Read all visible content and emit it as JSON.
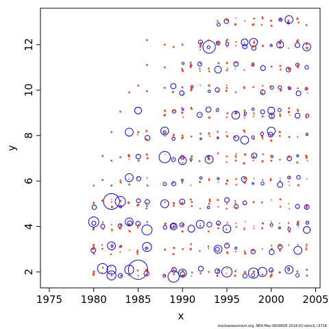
{
  "chart_data": {
    "type": "scatter",
    "title": "",
    "xlabel": "x",
    "ylabel": "y",
    "xlim": [
      1974,
      2005.5
    ],
    "ylim": [
      1.3,
      13.6
    ],
    "x_ticks": [
      1975,
      1980,
      1985,
      1990,
      1995,
      2000,
      2005
    ],
    "y_ticks": [
      2,
      4,
      6,
      8,
      10,
      12
    ],
    "grid": false,
    "legend": "none",
    "series": [
      {
        "color": "#0000ff",
        "marker": "open-circle",
        "points": [
          [
            1980,
            4.2,
            0.45
          ],
          [
            1981,
            2.15,
            0.45
          ],
          [
            1982,
            2.1,
            0.4
          ],
          [
            1982,
            1.85,
            0.4
          ],
          [
            1982,
            3.15,
            0.35
          ],
          [
            1982,
            5.1,
            0.7
          ],
          [
            1983,
            5.1,
            0.45
          ],
          [
            1984,
            2.1,
            0.4
          ],
          [
            1984,
            4.2,
            0.35
          ],
          [
            1984,
            6.15,
            0.35
          ],
          [
            1984,
            8.15,
            0.35
          ],
          [
            1985,
            2.1,
            0.85
          ],
          [
            1985,
            9.1,
            0.3
          ],
          [
            1986,
            3.85,
            0.45
          ],
          [
            1986,
            3.1,
            0.4
          ],
          [
            1988,
            7.05,
            0.5
          ],
          [
            1988,
            8.2,
            0.35
          ],
          [
            1988,
            5.0,
            0.35
          ],
          [
            1989,
            1.8,
            0.5
          ],
          [
            1989,
            4.0,
            0.3
          ],
          [
            1990,
            1.95,
            0.35
          ],
          [
            1990,
            6.9,
            0.35
          ],
          [
            1991,
            3.9,
            0.3
          ],
          [
            1992,
            4.1,
            0.35
          ],
          [
            1993,
            11.9,
            0.55
          ],
          [
            1993,
            6.95,
            0.35
          ],
          [
            1994,
            10.9,
            0.3
          ],
          [
            1994,
            3.0,
            0.35
          ],
          [
            1995,
            2.0,
            0.45
          ],
          [
            1995,
            3.9,
            0.35
          ],
          [
            1996,
            8.9,
            0.35
          ],
          [
            1997,
            7.8,
            0.35
          ],
          [
            1997,
            12.1,
            0.3
          ],
          [
            1998,
            12.1,
            0.35
          ],
          [
            1998,
            1.95,
            0.45
          ],
          [
            1999,
            2.0,
            0.4
          ],
          [
            2000,
            8.2,
            0.35
          ],
          [
            2000,
            9.1,
            0.3
          ],
          [
            2001,
            12.0,
            0.3
          ],
          [
            2002,
            13.1,
            0.35
          ],
          [
            2002,
            2.1,
            0.35
          ],
          [
            2003,
            2.95,
            0.35
          ],
          [
            2004,
            11.9,
            0.35
          ],
          [
            2004,
            3.85,
            0.3
          ]
        ]
      },
      {
        "color": "#ee4422",
        "marker": "small-dot",
        "points": [
          [
            1980,
            5.8
          ],
          [
            1980,
            5.05
          ],
          [
            1980,
            3.1
          ],
          [
            1980,
            2.0
          ],
          [
            1981,
            7.1
          ],
          [
            1981,
            6.05
          ],
          [
            1981,
            4.1
          ],
          [
            1982,
            8.15
          ],
          [
            1982,
            6.9
          ],
          [
            1983,
            9.05
          ],
          [
            1983,
            7.05
          ],
          [
            1984,
            9.9
          ],
          [
            1984,
            5.85
          ],
          [
            1985,
            10.2
          ],
          [
            1985,
            8.15
          ],
          [
            1986,
            12.2
          ],
          [
            1986,
            11.1
          ],
          [
            1986,
            9.95
          ],
          [
            1986,
            4.9
          ],
          [
            1988,
            12.0
          ],
          [
            1988,
            11.0
          ],
          [
            1988,
            10.1
          ],
          [
            1988,
            9.1
          ],
          [
            1989,
            11.9
          ],
          [
            1990,
            12.0
          ],
          [
            1990,
            8.0
          ],
          [
            1991,
            11.1
          ],
          [
            1991,
            10.0
          ],
          [
            1992,
            11.9
          ],
          [
            1993,
            8.1
          ],
          [
            1993,
            5.0
          ],
          [
            1994,
            12.0
          ],
          [
            1995,
            10.1
          ],
          [
            1996,
            7.1
          ],
          [
            1997,
            9.1
          ],
          [
            1997,
            6.1
          ],
          [
            1998,
            12.9
          ],
          [
            1999,
            13.2
          ],
          [
            1999,
            10.0
          ],
          [
            2000,
            6.9
          ],
          [
            2001,
            11.9
          ],
          [
            2001,
            6.0
          ],
          [
            2002,
            10.9
          ],
          [
            2002,
            7.05
          ],
          [
            2003,
            11.1
          ],
          [
            2003,
            9.1
          ],
          [
            2004,
            10.1
          ],
          [
            2004,
            7.05
          ],
          [
            2004,
            4.9
          ],
          [
            2004,
            3.2
          ],
          [
            2004,
            2.1
          ]
        ]
      }
    ]
  },
  "credit": "stockassessment.org, NEA-Mac-WGWIDE-2014-V2-retro3, r3716"
}
